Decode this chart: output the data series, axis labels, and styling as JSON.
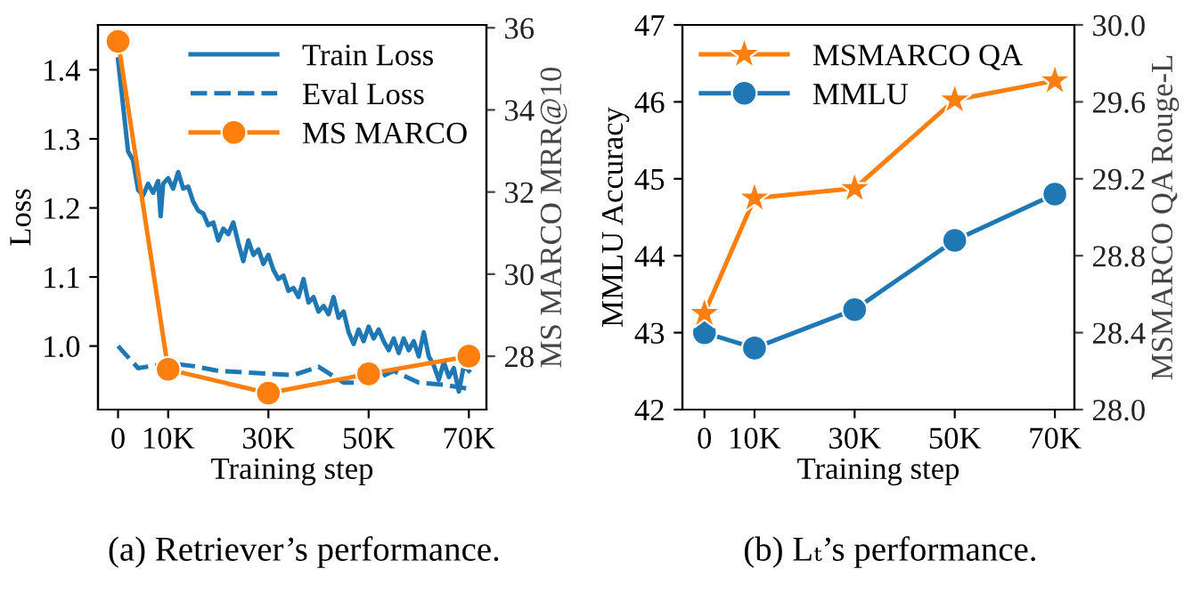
{
  "chart_data": [
    {
      "type": "line",
      "xlabel": "Training step",
      "ylabel": "Loss",
      "y2label": "MS MARCO MRR@10",
      "xlim": [
        -4000,
        73500
      ],
      "xticks": [
        0,
        {
          "value": 10000,
          "label": "10K"
        },
        {
          "value": 30000,
          "label": "30K"
        },
        {
          "value": 50000,
          "label": "50K"
        },
        {
          "value": 70000,
          "label": "70K"
        }
      ],
      "ylim": [
        0.908,
        1.465
      ],
      "yticks": [
        {
          "value": 1.0,
          "label": "1.0"
        },
        1.1,
        1.2,
        1.3,
        1.4
      ],
      "y2lim": [
        26.7,
        36.07
      ],
      "y2ticks": [
        28,
        30,
        32,
        34,
        36
      ],
      "legend": "top right",
      "annotations": [
        "(a) Retriever’s performance."
      ],
      "series": [
        {
          "name": "Train Loss",
          "color": "#1f77b4",
          "marker": "none",
          "line_style": "solid",
          "x": [
            0,
            2000,
            3000,
            4000,
            5000,
            6000,
            7000,
            8000,
            8500,
            9000,
            10000,
            11000,
            12000,
            13000,
            14000,
            15000,
            16000,
            17000,
            18000,
            19000,
            20000,
            21000,
            22000,
            23000,
            24000,
            25000,
            26000,
            27000,
            28000,
            29000,
            30000,
            31000,
            32000,
            33000,
            34000,
            35000,
            36000,
            37000,
            38000,
            39000,
            40000,
            41000,
            42000,
            43000,
            44000,
            45000,
            46000,
            47000,
            48000,
            49000,
            50000,
            51000,
            52000,
            53000,
            54000,
            55000,
            56000,
            57000,
            58000,
            59000,
            60000,
            61000,
            62000,
            63000,
            64000,
            65000,
            66000,
            67000,
            68000,
            69000,
            70000
          ],
          "values": [
            1.415,
            1.282,
            1.269,
            1.226,
            1.218,
            1.235,
            1.222,
            1.239,
            1.188,
            1.235,
            1.243,
            1.228,
            1.252,
            1.228,
            1.231,
            1.209,
            1.196,
            1.192,
            1.175,
            1.179,
            1.153,
            1.17,
            1.162,
            1.179,
            1.149,
            1.123,
            1.153,
            1.132,
            1.14,
            1.119,
            1.132,
            1.11,
            1.097,
            1.102,
            1.08,
            1.084,
            1.071,
            1.097,
            1.063,
            1.071,
            1.05,
            1.058,
            1.046,
            1.071,
            1.041,
            1.05,
            1.02,
            1.003,
            1.024,
            1.007,
            1.028,
            1.011,
            1.024,
            1.007,
            0.994,
            1.011,
            0.99,
            1.011,
            0.994,
            1.007,
            0.985,
            1.02,
            0.985,
            0.972,
            0.951,
            0.977,
            0.955,
            0.968,
            0.934,
            0.972,
            0.964
          ]
        },
        {
          "name": "Eval Loss",
          "color": "#1f77b4",
          "marker": "none",
          "line_style": "dashed",
          "x": [
            0,
            4000,
            10000,
            15000,
            20000,
            30000,
            35000,
            40000,
            45000,
            50000,
            55000,
            60000,
            65000,
            70000
          ],
          "values": [
            1.0,
            0.968,
            0.975,
            0.971,
            0.964,
            0.96,
            0.958,
            0.97,
            0.947,
            0.947,
            0.964,
            0.947,
            0.944,
            0.938
          ]
        },
        {
          "name": "MS MARCO",
          "color": "#ff7f0e",
          "marker": "circle",
          "line_style": "solid",
          "axis": "y2",
          "x": [
            0,
            10000,
            30000,
            50000,
            70000
          ],
          "values": [
            35.67,
            27.68,
            27.1,
            27.57,
            28.0
          ]
        }
      ]
    },
    {
      "type": "line",
      "xlabel": "Training step",
      "ylabel": "MMLU Accuracy",
      "y2label": "MSMARCO QA Rouge-L",
      "xlim": [
        -4400,
        73900
      ],
      "xticks": [
        0,
        {
          "value": 10000,
          "label": "10K"
        },
        {
          "value": 30000,
          "label": "30K"
        },
        {
          "value": 50000,
          "label": "50K"
        },
        {
          "value": 70000,
          "label": "70K"
        }
      ],
      "ylim": [
        42,
        47
      ],
      "yticks": [
        42,
        43,
        44,
        45,
        46,
        47
      ],
      "y2lim": [
        28.0,
        30.0
      ],
      "y2ticks": [
        {
          "value": 28.0,
          "label": "28.0"
        },
        28.4,
        28.8,
        29.2,
        29.6,
        {
          "value": 30.0,
          "label": "30.0"
        }
      ],
      "legend": "top left",
      "annotations": [
        "(b) Lₜ’s performance."
      ],
      "series": [
        {
          "name": "MSMARCO QA",
          "color": "#ff7f0e",
          "marker": "star",
          "line_style": "solid",
          "axis": "y2",
          "x": [
            0,
            10000,
            30000,
            50000,
            70000
          ],
          "values": [
            28.5,
            29.1,
            29.15,
            29.61,
            29.71
          ]
        },
        {
          "name": "MMLU",
          "color": "#1f77b4",
          "marker": "circle",
          "line_style": "solid",
          "x": [
            0,
            10000,
            30000,
            50000,
            70000
          ],
          "values": [
            43.0,
            42.8,
            43.3,
            44.2,
            44.8
          ]
        }
      ]
    }
  ]
}
